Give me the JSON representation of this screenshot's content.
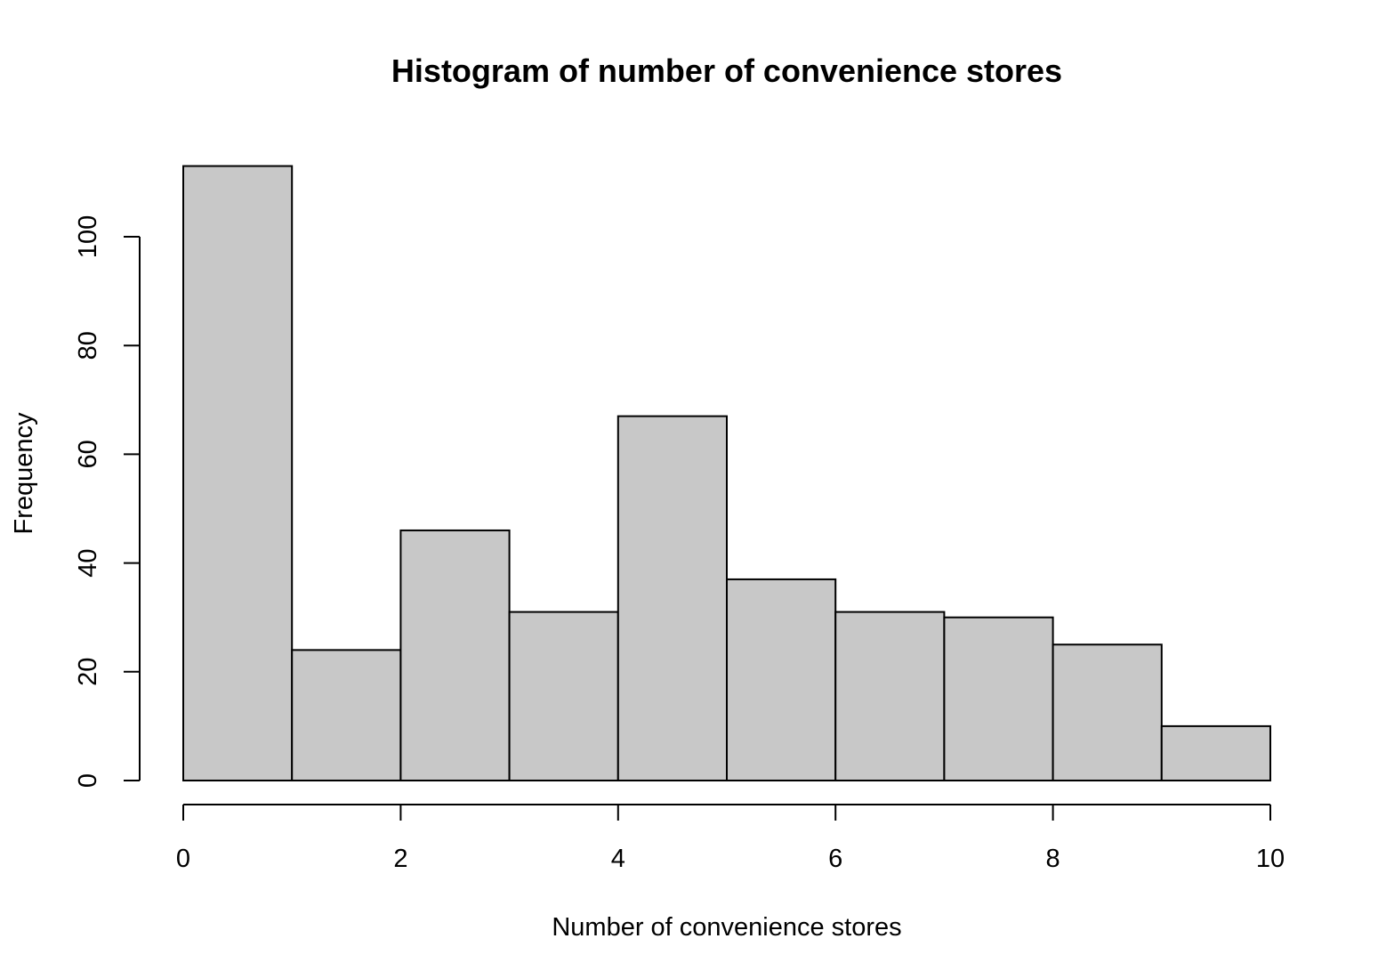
{
  "chart_data": {
    "type": "bar",
    "title": "Histogram of number of convenience stores",
    "xlabel": "Number of convenience stores",
    "ylabel": "Frequency",
    "bins": [
      {
        "from": 0,
        "to": 1,
        "count": 113
      },
      {
        "from": 1,
        "to": 2,
        "count": 24
      },
      {
        "from": 2,
        "to": 3,
        "count": 46
      },
      {
        "from": 3,
        "to": 4,
        "count": 31
      },
      {
        "from": 4,
        "to": 5,
        "count": 67
      },
      {
        "from": 5,
        "to": 6,
        "count": 37
      },
      {
        "from": 6,
        "to": 7,
        "count": 31
      },
      {
        "from": 7,
        "to": 8,
        "count": 30
      },
      {
        "from": 8,
        "to": 9,
        "count": 25
      },
      {
        "from": 9,
        "to": 10,
        "count": 10
      }
    ],
    "xlim": [
      0,
      10
    ],
    "ylim": [
      0,
      113
    ],
    "x_ticks": [
      "0",
      "2",
      "4",
      "6",
      "8",
      "10"
    ],
    "y_ticks": [
      "0",
      "20",
      "40",
      "60",
      "80",
      "100"
    ],
    "bar_fill": "#c8c8c8",
    "bar_stroke": "#000000",
    "grid": false,
    "legend": "none"
  }
}
